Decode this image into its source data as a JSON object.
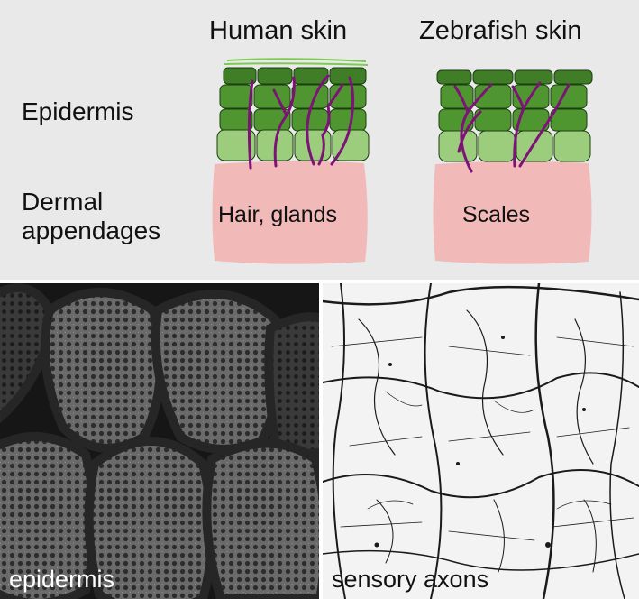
{
  "columns": {
    "human_title": "Human skin",
    "zebrafish_title": "Zebrafish skin"
  },
  "rows": {
    "epidermis": "Epidermis",
    "dermal_line1": "Dermal",
    "dermal_line2": "appendages"
  },
  "boxes": {
    "human_dermis": "Hair, glands",
    "zebrafish_dermis": "Scales"
  },
  "photos": {
    "left_label": "epidermis",
    "right_label": "sensory axons"
  },
  "colors": {
    "panel_bg": "#e9e9e9",
    "dermis": "#f2b9b9",
    "cell_dark": "#3f7d27",
    "cell_mid": "#4f9631",
    "cell_light": "#9ccd7d",
    "axon": "#7d1277",
    "surface": "#7fc957"
  }
}
